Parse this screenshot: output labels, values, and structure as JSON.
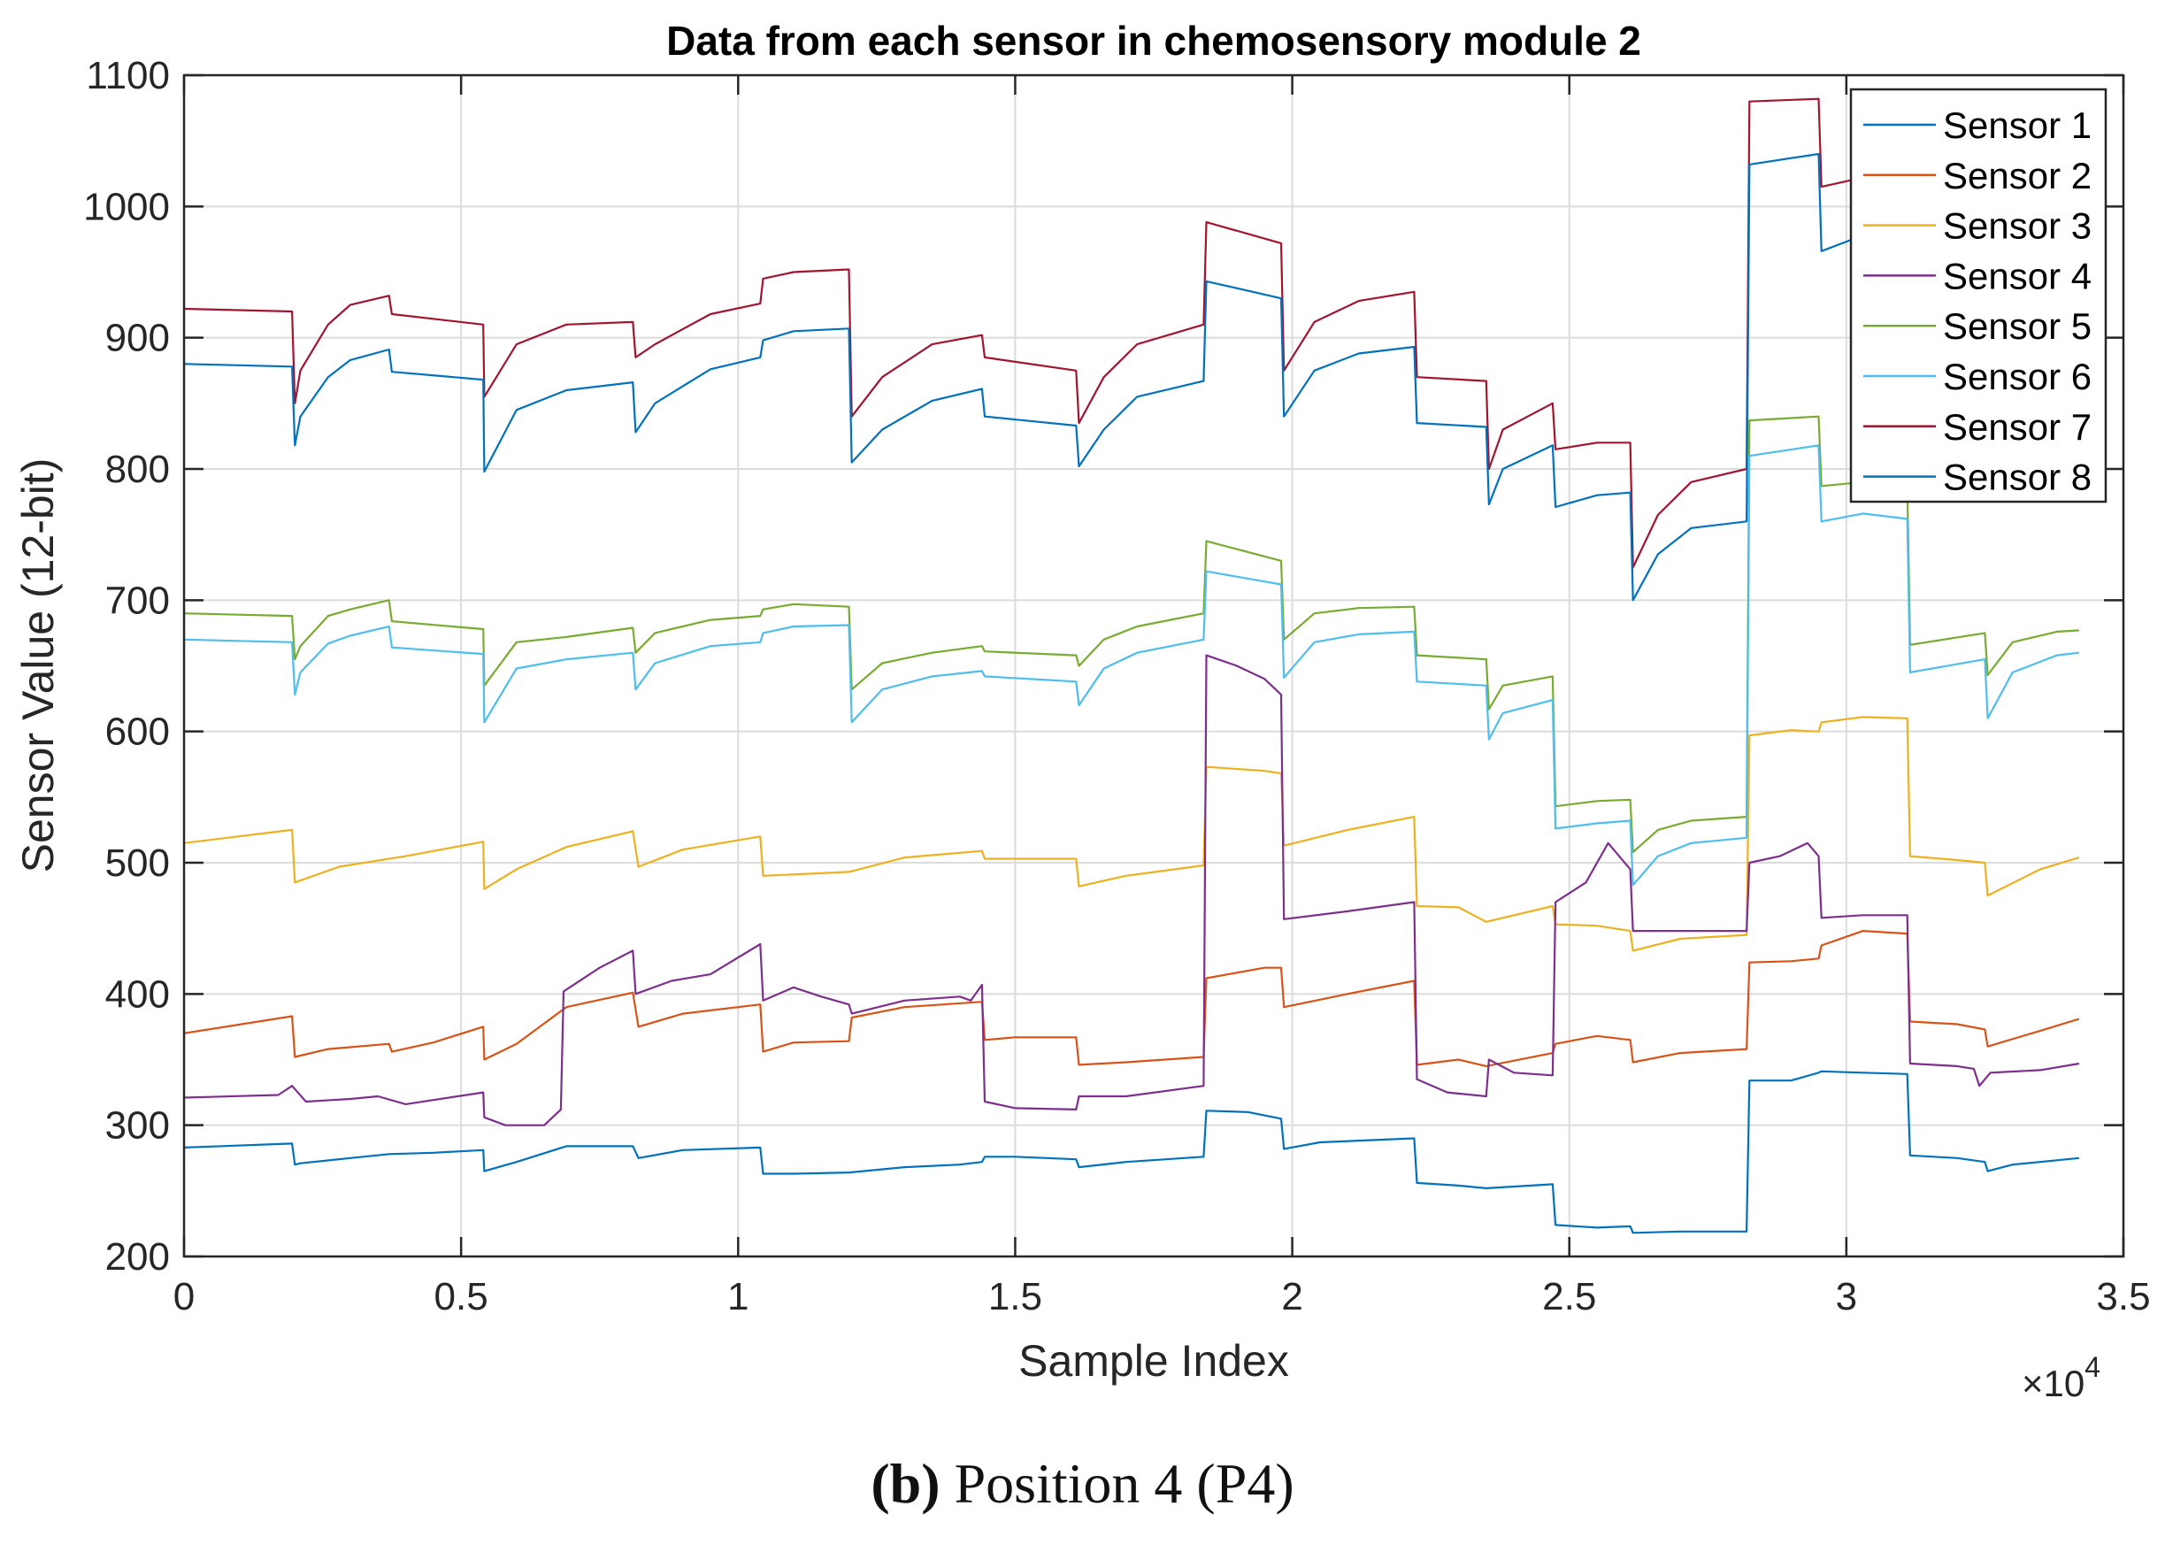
{
  "chart_data": {
    "type": "line",
    "title": "Data from each sensor in chemosensory module 2",
    "xlabel": "Sample Index",
    "ylabel": "Sensor Value (12-bit)",
    "x_exponent_label": "×10",
    "x_exponent_power": "4",
    "xlim": [
      0,
      35000
    ],
    "ylim": [
      200,
      1100
    ],
    "xticks": [
      0,
      5000,
      10000,
      15000,
      20000,
      25000,
      30000,
      35000
    ],
    "xtick_labels": [
      "0",
      "0.5",
      "1",
      "1.5",
      "2",
      "2.5",
      "3",
      "3.5"
    ],
    "yticks": [
      200,
      300,
      400,
      500,
      600,
      700,
      800,
      900,
      1000,
      1100
    ],
    "ytick_labels": [
      "200",
      "300",
      "400",
      "500",
      "600",
      "700",
      "800",
      "900",
      "1000",
      "1100"
    ],
    "grid": true,
    "legend_position": "top-right",
    "series": [
      {
        "name": "Sensor 1",
        "color": "#0072BD",
        "x": [
          0,
          1950,
          2000,
          2100,
          3000,
          3700,
          4500,
          5400,
          5420,
          6000,
          6900,
          8100,
          8200,
          9000,
          10400,
          10450,
          11000,
          12000,
          13000,
          14000,
          14400,
          14450,
          15000,
          16100,
          16150,
          17000,
          18400,
          18450,
          19200,
          19800,
          19850,
          20500,
          22200,
          22250,
          23000,
          23500,
          24700,
          24750,
          25500,
          26100,
          26150,
          27000,
          28200,
          28250,
          29000,
          29500,
          29550,
          30300,
          31100,
          31150,
          32000,
          32500,
          32550,
          33000,
          34200
        ],
        "y": [
          283,
          286,
          270,
          271,
          275,
          278,
          279,
          281,
          265,
          272,
          284,
          284,
          275,
          281,
          283,
          263,
          263,
          264,
          268,
          270,
          272,
          276,
          276,
          274,
          268,
          272,
          276,
          311,
          310,
          305,
          282,
          287,
          290,
          256,
          254,
          252,
          255,
          224,
          222,
          223,
          218,
          219,
          219,
          334,
          334,
          340,
          341,
          340,
          339,
          277,
          275,
          272,
          265,
          270,
          275
        ]
      },
      {
        "name": "Sensor 2",
        "color": "#D95319",
        "x": [
          0,
          1950,
          2000,
          2600,
          3700,
          3750,
          4500,
          5400,
          5420,
          6000,
          6900,
          8100,
          8200,
          9000,
          10400,
          10450,
          11000,
          12000,
          12050,
          13000,
          14400,
          14450,
          15000,
          16100,
          16150,
          17000,
          18400,
          18450,
          19500,
          19800,
          19850,
          21000,
          22200,
          22250,
          23000,
          23500,
          24700,
          24750,
          25500,
          26100,
          26150,
          27000,
          28200,
          28250,
          29000,
          29500,
          29550,
          30300,
          31100,
          31150,
          32000,
          32500,
          32550,
          33500,
          34200
        ],
        "y": [
          370,
          383,
          352,
          358,
          362,
          356,
          363,
          375,
          350,
          362,
          390,
          401,
          375,
          385,
          392,
          356,
          363,
          364,
          382,
          390,
          394,
          365,
          367,
          367,
          346,
          348,
          352,
          412,
          420,
          420,
          390,
          400,
          410,
          346,
          350,
          345,
          355,
          362,
          368,
          365,
          348,
          355,
          358,
          424,
          425,
          427,
          437,
          448,
          446,
          379,
          377,
          373,
          360,
          372,
          381
        ]
      },
      {
        "name": "Sensor 3",
        "color": "#EDB120",
        "x": [
          0,
          1950,
          2000,
          2800,
          4000,
          5400,
          5420,
          6000,
          6900,
          8100,
          8200,
          9000,
          10400,
          10450,
          12000,
          13000,
          14400,
          14450,
          16100,
          16150,
          17000,
          18400,
          18450,
          19500,
          19800,
          19850,
          21000,
          22200,
          22250,
          23000,
          23500,
          24700,
          24750,
          25500,
          26100,
          26150,
          27000,
          28200,
          28250,
          29000,
          29500,
          29550,
          30300,
          31100,
          31150,
          32000,
          32500,
          32550,
          33500,
          34200
        ],
        "y": [
          515,
          525,
          485,
          497,
          505,
          516,
          480,
          495,
          512,
          524,
          497,
          510,
          520,
          490,
          493,
          504,
          509,
          503,
          503,
          482,
          490,
          498,
          573,
          570,
          568,
          513,
          525,
          535,
          467,
          466,
          455,
          467,
          453,
          452,
          448,
          433,
          442,
          445,
          597,
          601,
          600,
          607,
          611,
          610,
          505,
          502,
          500,
          475,
          495,
          504
        ]
      },
      {
        "name": "Sensor 4",
        "color": "#7E2F8E",
        "x": [
          0,
          1700,
          1950,
          2200,
          3000,
          3500,
          4000,
          5400,
          5420,
          5800,
          6500,
          6800,
          6850,
          7500,
          8100,
          8150,
          8800,
          9500,
          10400,
          10450,
          11000,
          11500,
          12000,
          12050,
          13000,
          14000,
          14200,
          14400,
          14450,
          15000,
          16100,
          16150,
          17000,
          18400,
          18450,
          19000,
          19500,
          19800,
          19850,
          21000,
          22200,
          22250,
          22800,
          23500,
          23550,
          24000,
          24700,
          24750,
          25300,
          25700,
          26100,
          26150,
          27000,
          28200,
          28250,
          28800,
          29300,
          29500,
          29550,
          30300,
          31100,
          31150,
          32000,
          32300,
          32400,
          32600,
          33500,
          34200
        ],
        "y": [
          321,
          323,
          330,
          318,
          320,
          322,
          316,
          325,
          306,
          300,
          300,
          312,
          402,
          420,
          433,
          400,
          410,
          415,
          438,
          395,
          405,
          398,
          392,
          385,
          395,
          398,
          395,
          407,
          318,
          313,
          312,
          322,
          322,
          330,
          658,
          650,
          640,
          628,
          457,
          463,
          470,
          335,
          325,
          322,
          350,
          340,
          338,
          470,
          485,
          515,
          495,
          448,
          448,
          448,
          500,
          505,
          515,
          505,
          458,
          460,
          460,
          347,
          345,
          343,
          330,
          340,
          342,
          347
        ]
      },
      {
        "name": "Sensor 5",
        "color": "#77AC30",
        "x": [
          0,
          1950,
          2000,
          2100,
          2600,
          3000,
          3700,
          3750,
          5400,
          5420,
          6000,
          6900,
          8100,
          8150,
          8500,
          9500,
          10400,
          10450,
          11000,
          12000,
          12050,
          12600,
          13500,
          14400,
          14450,
          16100,
          16150,
          16600,
          17200,
          18400,
          18450,
          19800,
          19850,
          20400,
          21200,
          22200,
          22250,
          23500,
          23550,
          23800,
          24700,
          24750,
          25500,
          26100,
          26150,
          26600,
          27200,
          28200,
          28250,
          29500,
          29550,
          30300,
          31100,
          31150,
          32500,
          32550,
          33000,
          33800,
          34200
        ],
        "y": [
          690,
          688,
          655,
          665,
          688,
          693,
          700,
          684,
          678,
          635,
          668,
          672,
          679,
          660,
          675,
          685,
          688,
          693,
          697,
          695,
          632,
          652,
          660,
          665,
          661,
          658,
          650,
          670,
          680,
          690,
          745,
          730,
          670,
          690,
          694,
          695,
          658,
          655,
          617,
          635,
          642,
          543,
          547,
          548,
          508,
          525,
          532,
          535,
          837,
          840,
          787,
          790,
          786,
          666,
          675,
          643,
          668,
          676,
          677
        ]
      },
      {
        "name": "Sensor 6",
        "color": "#4DBEEE",
        "x": [
          0,
          1950,
          2000,
          2100,
          2600,
          3000,
          3700,
          3750,
          5400,
          5420,
          6000,
          6900,
          8100,
          8150,
          8500,
          9500,
          10400,
          10450,
          11000,
          12000,
          12050,
          12600,
          13500,
          14400,
          14450,
          16100,
          16150,
          16600,
          17200,
          18400,
          18450,
          19800,
          19850,
          20400,
          21200,
          22200,
          22250,
          23500,
          23550,
          23800,
          24700,
          24750,
          25500,
          26100,
          26150,
          26600,
          27200,
          28200,
          28250,
          29500,
          29550,
          30300,
          31100,
          31150,
          32500,
          32550,
          33000,
          33800,
          34200
        ],
        "y": [
          670,
          668,
          628,
          645,
          667,
          673,
          680,
          664,
          659,
          607,
          648,
          655,
          660,
          632,
          652,
          665,
          668,
          675,
          680,
          681,
          607,
          632,
          642,
          646,
          642,
          638,
          620,
          648,
          660,
          670,
          722,
          712,
          641,
          668,
          674,
          676,
          638,
          635,
          594,
          614,
          624,
          526,
          530,
          532,
          483,
          505,
          515,
          519,
          810,
          818,
          760,
          766,
          762,
          645,
          655,
          610,
          645,
          658,
          660
        ]
      },
      {
        "name": "Sensor 7",
        "color": "#A2142F",
        "x": [
          0,
          1950,
          2000,
          2100,
          2600,
          3000,
          3700,
          3750,
          5400,
          5420,
          6000,
          6900,
          8100,
          8150,
          8500,
          9500,
          10400,
          10450,
          11000,
          12000,
          12050,
          12600,
          13500,
          14400,
          14450,
          16100,
          16150,
          16600,
          17200,
          18400,
          18450,
          19800,
          19850,
          20400,
          21200,
          22200,
          22250,
          23500,
          23550,
          23800,
          24700,
          24750,
          25500,
          26100,
          26150,
          26600,
          27200,
          28200,
          28250,
          29500,
          29550,
          30300
        ],
        "y": [
          922,
          920,
          850,
          875,
          910,
          925,
          932,
          918,
          910,
          855,
          895,
          910,
          912,
          885,
          895,
          918,
          926,
          945,
          950,
          952,
          840,
          870,
          895,
          902,
          885,
          875,
          835,
          870,
          895,
          910,
          988,
          972,
          875,
          912,
          928,
          935,
          870,
          867,
          800,
          830,
          850,
          815,
          820,
          820,
          725,
          765,
          790,
          800,
          1080,
          1082,
          1015,
          1022
        ]
      },
      {
        "name": "Sensor 8",
        "color": "#0072BD",
        "x": [
          0,
          1950,
          2000,
          2100,
          2600,
          3000,
          3700,
          3750,
          5400,
          5420,
          6000,
          6900,
          8100,
          8150,
          8500,
          9500,
          10400,
          10450,
          11000,
          12000,
          12050,
          12600,
          13500,
          14400,
          14450,
          16100,
          16150,
          16600,
          17200,
          18400,
          18450,
          19800,
          19850,
          20400,
          21200,
          22200,
          22250,
          23500,
          23550,
          23800,
          24700,
          24750,
          25500,
          26100,
          26150,
          26600,
          27200,
          28200,
          28250,
          29500,
          29550,
          30300
        ],
        "y": [
          880,
          878,
          818,
          840,
          870,
          883,
          891,
          874,
          868,
          798,
          845,
          860,
          866,
          828,
          850,
          876,
          885,
          898,
          905,
          907,
          805,
          830,
          852,
          861,
          840,
          833,
          802,
          830,
          855,
          867,
          943,
          930,
          840,
          875,
          888,
          893,
          835,
          832,
          773,
          800,
          818,
          771,
          780,
          782,
          700,
          735,
          755,
          760,
          1032,
          1040,
          966,
          978
        ]
      }
    ]
  },
  "caption": {
    "label": "(b)",
    "text": "Position 4 (P4)"
  }
}
